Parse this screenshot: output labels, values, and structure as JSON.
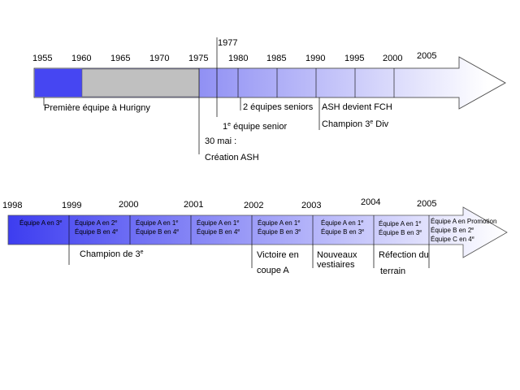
{
  "timeline1": {
    "years": [
      "1955",
      "1960",
      "1965",
      "1970",
      "1975",
      "1977",
      "1980",
      "1985",
      "1990",
      "1995",
      "2000",
      "2005"
    ],
    "events": {
      "hurigny": "Première équipe à Hurigny",
      "seniors2": "2 équipes seniors",
      "ash_fch": "ASH devient FCH",
      "champion3": "Champion 3",
      "champion3_sup": "e",
      "champion3_suffix": " Div",
      "first_senior_num": "1",
      "first_senior_sup": "e",
      "first_senior_suffix": " équipe senior",
      "mai30": "30 mai :",
      "creation": "Création ASH"
    }
  },
  "timeline2": {
    "years": [
      "1998",
      "1999",
      "2000",
      "2001",
      "2002",
      "2003",
      "2004",
      "2005"
    ],
    "cells": [
      {
        "l1": "Équipe A en 3",
        "s1": "e",
        "l2": "",
        "s2": ""
      },
      {
        "l1": "Équipe A en 2",
        "s1": "e",
        "l2": "Équipe B en 4",
        "s2": "e"
      },
      {
        "l1": "Équipe A en 1",
        "s1": "e",
        "l2": "Équipe B en 4",
        "s2": "e"
      },
      {
        "l1": "Équipe A en 1",
        "s1": "e",
        "l2": "Équipe B en 4",
        "s2": "e"
      },
      {
        "l1": "Équipe A en 1",
        "s1": "e",
        "l2": "Équipe B en 3",
        "s2": "e"
      },
      {
        "l1": "Équipe A en 1",
        "s1": "e",
        "l2": "Équipe B en 3",
        "s2": "e"
      },
      {
        "l1": "Équipe A en 1",
        "s1": "e",
        "l2": "Équipe B en 3",
        "s2": "e"
      }
    ],
    "last_cell": {
      "l1": "Équipe A en Promotion",
      "l2": "Équipe B en 2",
      "s2": "e",
      "l3": "Équipe C en 4",
      "s3": "e"
    },
    "events": {
      "champion3": "Champion de 3",
      "champion3_sup": "e",
      "victoire_l1": "Victoire en",
      "victoire_l2": "coupe A",
      "vestiaires_l1": "Nouveaux",
      "vestiaires_l2": "vestiaires",
      "terrain_l1": "Réfection du",
      "terrain_l2": "terrain"
    }
  },
  "colors": {
    "blue": "#3d3df0",
    "gray": "#c0c0c0",
    "line": "#000000"
  }
}
